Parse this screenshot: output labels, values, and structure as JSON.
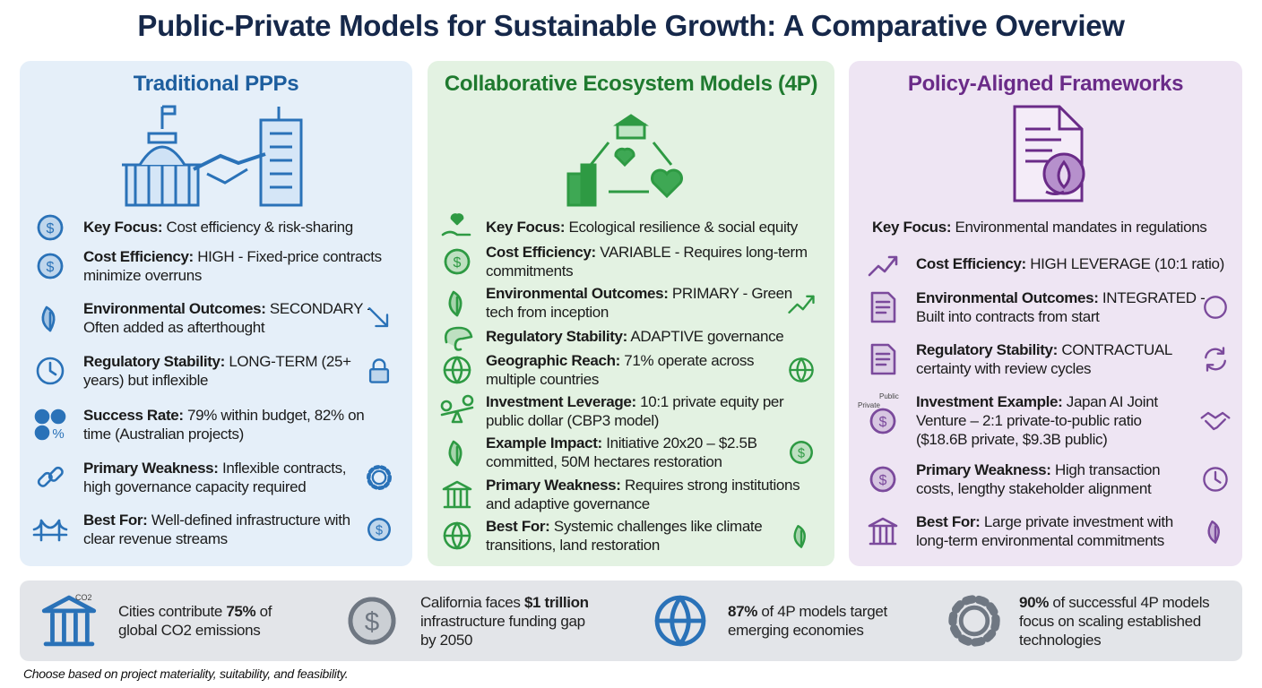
{
  "title": "Public-Private Models for Sustainable Growth: A Comparative Overview",
  "colors": {
    "blue": "#2a72b8",
    "green": "#2e9a43",
    "purple": "#7b4a9c",
    "grey": "#6f7782",
    "navy": "#16284a"
  },
  "panels": [
    {
      "heading": "Traditional PPPs",
      "hero_icon": "capitol-handshake-office-icon",
      "rows": [
        {
          "label": "Key Focus:",
          "lines": [
            "Cost efficiency & risk-sharing"
          ],
          "icon": "hand-coin-icon"
        },
        {
          "label": "Cost Efficiency:",
          "lines": [
            "HIGH - Fixed-price contracts",
            "minimize overruns"
          ],
          "icon": "coin-stack-icon"
        },
        {
          "label": "Environmental Outcomes:",
          "lines": [
            "SECONDARY -",
            "Often added as afterthought"
          ],
          "icon": "leaf-cycle-icon",
          "right_icon": "arrow-down-right-icon"
        },
        {
          "label": "Regulatory Stability:",
          "lines": [
            "LONG-TERM (25+",
            "years) but inflexible"
          ],
          "icon": "clock-icon",
          "right_icon": "lock-icon"
        },
        {
          "label": "Success Rate:",
          "lines": [
            "79% within budget, 82% on",
            "time (Australian projects)"
          ],
          "icon": "checks-percent-icon"
        },
        {
          "label": "Primary Weakness:",
          "lines": [
            "Inflexible contracts,",
            "high governance capacity required"
          ],
          "icon": "broken-chain-icon",
          "right_icon": "gears-icon"
        },
        {
          "label": "Best For:",
          "lines": [
            "Well-defined infrastructure with",
            "clear revenue streams"
          ],
          "icon": "bridge-icon",
          "right_icon": "hand-dollar-icon"
        }
      ]
    },
    {
      "heading": "Collaborative Ecosystem Models (4P)",
      "hero_icon": "ecosystem-cycle-icon",
      "rows": [
        {
          "label": "Key Focus:",
          "lines": [
            "Ecological resilience & social equity"
          ],
          "icon": "hand-heart-icon"
        },
        {
          "label": "Cost Efficiency:",
          "lines": [
            "VARIABLE - Requires long-term",
            "commitments"
          ],
          "icon": "growth-coins-icon"
        },
        {
          "label": "Environmental Outcomes:",
          "lines": [
            "PRIMARY - Green",
            "tech from inception"
          ],
          "icon": "sprout-icon",
          "right_icon": "trend-up-icon"
        },
        {
          "label": "Regulatory Stability:",
          "lines": [
            "ADAPTIVE governance"
          ],
          "icon": "chameleon-icon"
        },
        {
          "label": "Geographic Reach:",
          "lines": [
            "71% operate across",
            "multiple countries"
          ],
          "icon": "globe-icon",
          "right_icon": "network-globe-icon"
        },
        {
          "label": "Investment Leverage:",
          "lines": [
            "10:1 private equity per",
            "public dollar (CBP3 model)"
          ],
          "icon": "balance-icon"
        },
        {
          "label": "Example Impact:",
          "lines": [
            "Initiative 20x20 – $2.5B",
            "committed, 50M hectares restoration"
          ],
          "icon": "tree-icon",
          "right_icon": "hand-dollar-icon"
        },
        {
          "label": "Primary Weakness:",
          "lines": [
            "Requires strong institutions",
            "and adaptive governance"
          ],
          "icon": "institution-icon"
        },
        {
          "label": "Best For:",
          "lines": [
            "Systemic challenges like climate",
            "transitions, land restoration"
          ],
          "icon": "globe-thermometer-icon",
          "right_icon": "forest-icon"
        }
      ]
    },
    {
      "heading": "Policy-Aligned Frameworks",
      "hero_icon": "policy-document-leaf-icon",
      "rows": [
        {
          "label": "Key Focus:",
          "lines": [
            "Environmental mandates in regulations"
          ]
        },
        {
          "label": "Cost Efficiency:",
          "lines": [
            "HIGH LEVERAGE (10:1 ratio)"
          ],
          "icon": "trend-ten-to-one-icon"
        },
        {
          "label": "Environmental Outcomes:",
          "lines": [
            "INTEGRATED -",
            "Built into contracts from start"
          ],
          "icon": "document-pen-icon",
          "right_icon": "leaves-icon"
        },
        {
          "label": "Regulatory Stability:",
          "lines": [
            "CONTRACTUAL",
            "certainty with review cycles"
          ],
          "icon": "scroll-icon",
          "right_icon": "refresh-icon"
        },
        {
          "label": "Investment Example:",
          "lines": [
            "Japan AI Joint",
            "Venture – 2:1 private-to-public ratio",
            "($18.6B private, $9.3B public)"
          ],
          "icon": "coin-stacks-labeled-icon",
          "icon_labels": [
            "Public",
            "Private"
          ],
          "right_icon": "handshake-icon"
        },
        {
          "label": "Primary Weakness:",
          "lines": [
            "High transaction",
            "costs, lengthy stakeholder alignment"
          ],
          "icon": "coins-icon",
          "right_icon": "clock-people-icon"
        },
        {
          "label": "Best For:",
          "lines": [
            "Large private investment with",
            "long-term environmental commitments"
          ],
          "icon": "buildings-icon",
          "right_icon": "plant-icon"
        }
      ]
    }
  ],
  "stats": [
    {
      "icon": "city-co2-icon",
      "icon_text": "CO2",
      "parts": [
        {
          "t": "Cities contribute "
        },
        {
          "t": "75%",
          "b": true
        },
        {
          "t": " of\nglobal CO2 emissions"
        }
      ]
    },
    {
      "icon": "california-money-bag-icon",
      "parts": [
        {
          "t": "California faces "
        },
        {
          "t": "$1 trillion",
          "b": true
        },
        {
          "t": "\ninfrastructure funding gap\nby 2050"
        }
      ]
    },
    {
      "icon": "globe-cycle-icon",
      "parts": [
        {
          "t": "87%",
          "b": true
        },
        {
          "t": " of 4P models target\nemerging economies"
        }
      ]
    },
    {
      "icon": "gears-magnifier-icon",
      "parts": [
        {
          "t": "90%",
          "b": true
        },
        {
          "t": " of successful 4P models\nfocus on scaling established\ntechnologies"
        }
      ]
    }
  ],
  "footnote": "Choose based on project materiality, suitability, and feasibility."
}
